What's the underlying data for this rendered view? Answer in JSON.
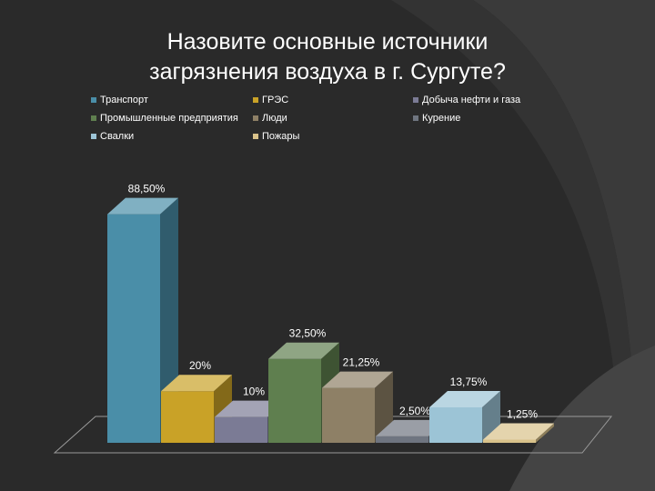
{
  "title_line1": "Назовите основные источники",
  "title_line2": "загрязнения воздуха в г. Сургуте?",
  "chart_data": {
    "type": "bar",
    "title": "Назовите основные источники загрязнения воздуха в г. Сургуте?",
    "xlabel": "",
    "ylabel": "",
    "ylim": [
      0,
      100
    ],
    "legend_position": "top",
    "grid": false,
    "series": [
      {
        "name": "Транспорт",
        "value": 88.5,
        "label": "88,50%",
        "color": "#4a8ea8"
      },
      {
        "name": "ГРЭС",
        "value": 20,
        "label": "20%",
        "color": "#c9a227"
      },
      {
        "name": "Добыча нефти и газа",
        "value": 10,
        "label": "10%",
        "color": "#7b7b95"
      },
      {
        "name": "Промышленные предприятия",
        "value": 32.5,
        "label": "32,50%",
        "color": "#5f7f4f"
      },
      {
        "name": "Люди",
        "value": 21.25,
        "label": "21,25%",
        "color": "#8e8066"
      },
      {
        "name": "Курение",
        "value": 2.5,
        "label": "2,50%",
        "color": "#6f7580"
      },
      {
        "name": "Свалки",
        "value": 13.75,
        "label": "13,75%",
        "color": "#9cc4d6"
      },
      {
        "name": "Пожары",
        "value": 1.25,
        "label": "1,25%",
        "color": "#d9c28a"
      }
    ]
  }
}
